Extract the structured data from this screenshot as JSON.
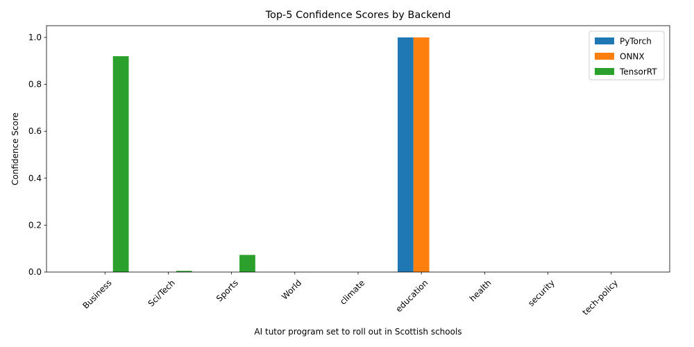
{
  "chart_data": {
    "type": "bar",
    "title": "Top-5 Confidence Scores by Backend",
    "xlabel": "AI tutor program set to roll out in Scottish schools",
    "ylabel": "Confidence Score",
    "categories": [
      "Business",
      "Sci/Tech",
      "Sports",
      "World",
      "climate",
      "education",
      "health",
      "security",
      "tech-policy"
    ],
    "series": [
      {
        "name": "PyTorch",
        "color": "#1f77b4",
        "values": [
          0,
          0,
          0,
          0,
          0,
          1.0,
          0,
          0,
          0
        ]
      },
      {
        "name": "ONNX",
        "color": "#ff7f0e",
        "values": [
          0,
          0,
          0,
          0,
          0,
          1.0,
          0,
          0,
          0
        ]
      },
      {
        "name": "TensorRT",
        "color": "#2ca02c",
        "values": [
          0.92,
          0.005,
          0.073,
          0,
          0,
          0,
          0,
          0,
          0
        ]
      }
    ],
    "ylim": [
      0,
      1.05
    ],
    "yticks": [
      0.0,
      0.2,
      0.4,
      0.6,
      0.8,
      1.0
    ],
    "ytick_labels": [
      "0.0",
      "0.2",
      "0.4",
      "0.6",
      "0.8",
      "1.0"
    ],
    "legend_position": "top-right",
    "grid": false
  }
}
